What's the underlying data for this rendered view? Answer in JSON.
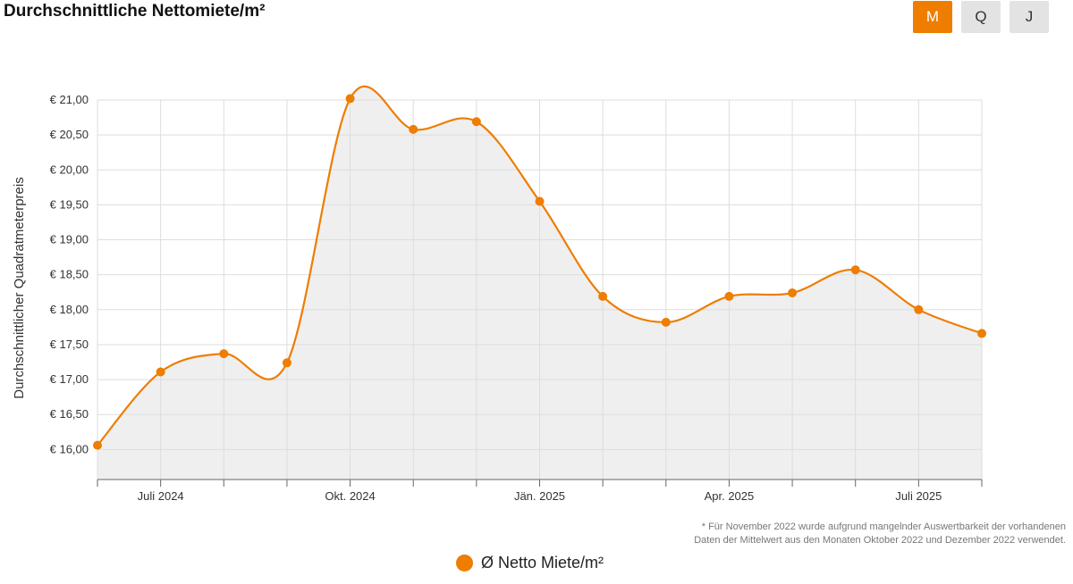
{
  "header": {
    "title": "Durchschnittliche Nettomiete/m²"
  },
  "period_toggle": {
    "options": [
      "M",
      "Q",
      "J"
    ],
    "selected": "M"
  },
  "colors": {
    "accent": "#ee7d00",
    "area_fill": "#efefef",
    "grid": "#dddddd"
  },
  "chart_data": {
    "type": "area",
    "title": "Durchschnittliche Nettomiete/m²",
    "ylabel": "Durchschnittlicher Quadratmeterpreis",
    "xlabel": "",
    "x": [
      "2024-06",
      "2024-07",
      "2024-08",
      "2024-09",
      "2024-10",
      "2024-11",
      "2024-12",
      "2025-01",
      "2025-02",
      "2025-03",
      "2025-04",
      "2025-05",
      "2025-06",
      "2025-07",
      "2025-08"
    ],
    "x_tick_labels": [
      {
        "x": "2024-07",
        "label": "Juli 2024"
      },
      {
        "x": "2024-10",
        "label": "Okt. 2024"
      },
      {
        "x": "2025-01",
        "label": "Jän. 2025"
      },
      {
        "x": "2025-04",
        "label": "Apr. 2025"
      },
      {
        "x": "2025-07",
        "label": "Juli 2025"
      }
    ],
    "y_tick_labels": [
      "€ 16,00",
      "€ 16,50",
      "€ 17,00",
      "€ 17,50",
      "€ 18,00",
      "€ 18,50",
      "€ 19,00",
      "€ 19,50",
      "€ 20,00",
      "€ 20,50",
      "€ 21,00"
    ],
    "y_ticks": [
      16.0,
      16.5,
      17.0,
      17.5,
      18.0,
      18.5,
      19.0,
      19.5,
      20.0,
      20.5,
      21.0
    ],
    "ylim": [
      15.57,
      21.0
    ],
    "series": [
      {
        "name": "Ø Netto Miete/m²",
        "values": [
          16.06,
          17.11,
          17.37,
          17.24,
          21.02,
          20.58,
          20.69,
          19.55,
          18.19,
          17.82,
          18.19,
          18.24,
          18.57,
          18.0,
          17.66
        ]
      }
    ],
    "grid": true,
    "legend": "bottom-center"
  },
  "legend": {
    "label": "Ø Netto Miete/m²"
  },
  "footnote": {
    "line1": "* Für November 2022 wurde aufgrund mangelnder Auswertbarkeit der vorhandenen",
    "line2": "Daten der Mittelwert aus den Monaten Oktober 2022 und Dezember 2022 verwendet."
  }
}
